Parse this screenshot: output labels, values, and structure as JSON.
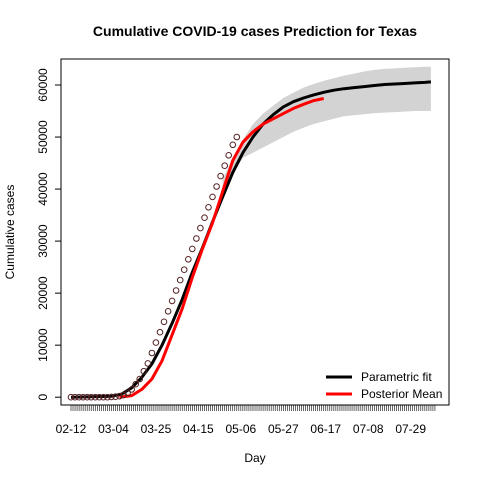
{
  "chart_data": {
    "type": "line",
    "title": "Cumulative COVID-19 cases Prediction for Texas",
    "xlabel": "Day",
    "ylabel": "Cumulative cases",
    "x_tick_labels": [
      "02-12",
      "03-04",
      "03-25",
      "04-15",
      "05-06",
      "05-27",
      "06-17",
      "07-08",
      "07-29"
    ],
    "y_ticks": [
      0,
      10000,
      20000,
      30000,
      40000,
      50000,
      60000
    ],
    "xlim_days": [
      0,
      182
    ],
    "ylim": [
      -1500,
      65000
    ],
    "legend": {
      "position": "bottom-right",
      "entries": [
        {
          "label": "Parametric fit",
          "color": "#000000"
        },
        {
          "label": "Posterior Mean",
          "color": "#ff0000"
        }
      ]
    },
    "series": [
      {
        "name": "Parametric fit",
        "color": "#000000",
        "x": [
          0,
          20,
          25,
          30,
          35,
          40,
          45,
          50,
          55,
          60,
          65,
          70,
          75,
          80,
          85,
          90,
          95,
          100,
          105,
          110,
          115,
          120,
          125,
          130,
          135,
          140,
          145,
          150,
          155,
          160,
          165,
          170,
          175,
          178
        ],
        "y": [
          0,
          200,
          600,
          1800,
          3800,
          6400,
          10000,
          14200,
          18800,
          24000,
          28700,
          33700,
          38500,
          43200,
          47000,
          50000,
          52500,
          54300,
          55800,
          56800,
          57500,
          58100,
          58600,
          59000,
          59300,
          59500,
          59700,
          59900,
          60100,
          60200,
          60300,
          60400,
          60500,
          60600
        ]
      },
      {
        "name": "Posterior Mean",
        "color": "#ff0000",
        "x": [
          24,
          30,
          35,
          40,
          45,
          50,
          55,
          60,
          65,
          70,
          75,
          80,
          85,
          90,
          95,
          100,
          105,
          110,
          115,
          120,
          125
        ],
        "y": [
          0,
          300,
          1500,
          3500,
          7000,
          12000,
          17000,
          23000,
          28500,
          33500,
          39500,
          45500,
          49000,
          51000,
          52500,
          53500,
          54500,
          55500,
          56300,
          57000,
          57400
        ]
      }
    ],
    "observed_points": {
      "x": [
        0,
        2,
        4,
        6,
        8,
        10,
        12,
        14,
        16,
        18,
        20,
        22,
        24,
        26,
        28,
        30,
        32,
        34,
        36,
        38,
        40,
        42,
        44,
        46,
        48,
        50,
        52,
        54,
        56,
        58,
        60,
        62,
        64,
        66,
        68,
        70,
        72,
        74,
        76,
        78,
        80,
        82
      ],
      "y": [
        0,
        0,
        0,
        0,
        0,
        0,
        0,
        0,
        0,
        0,
        50,
        100,
        200,
        400,
        800,
        1500,
        2500,
        3500,
        5000,
        6500,
        8500,
        10500,
        12500,
        14500,
        16500,
        18500,
        20500,
        22500,
        24500,
        26500,
        28500,
        30500,
        32500,
        34500,
        36500,
        38500,
        40500,
        42500,
        44500,
        46500,
        48500,
        50000
      ]
    },
    "credible_band": {
      "x": [
        75,
        80,
        85,
        90,
        95,
        100,
        105,
        110,
        115,
        120,
        125,
        130,
        135,
        140,
        145,
        150,
        155,
        160,
        165,
        170,
        175,
        178
      ],
      "upper": [
        42000,
        46000,
        49500,
        52500,
        54500,
        56000,
        57500,
        58500,
        59500,
        60200,
        60800,
        61300,
        61800,
        62200,
        62600,
        62900,
        63100,
        63200,
        63300,
        63400,
        63500,
        63500
      ],
      "lower": [
        38000,
        43000,
        46000,
        47000,
        48000,
        49000,
        50000,
        51000,
        51800,
        52500,
        53000,
        53500,
        54000,
        54200,
        54400,
        54600,
        54700,
        54800,
        54900,
        55000,
        55000,
        55000
      ]
    }
  }
}
